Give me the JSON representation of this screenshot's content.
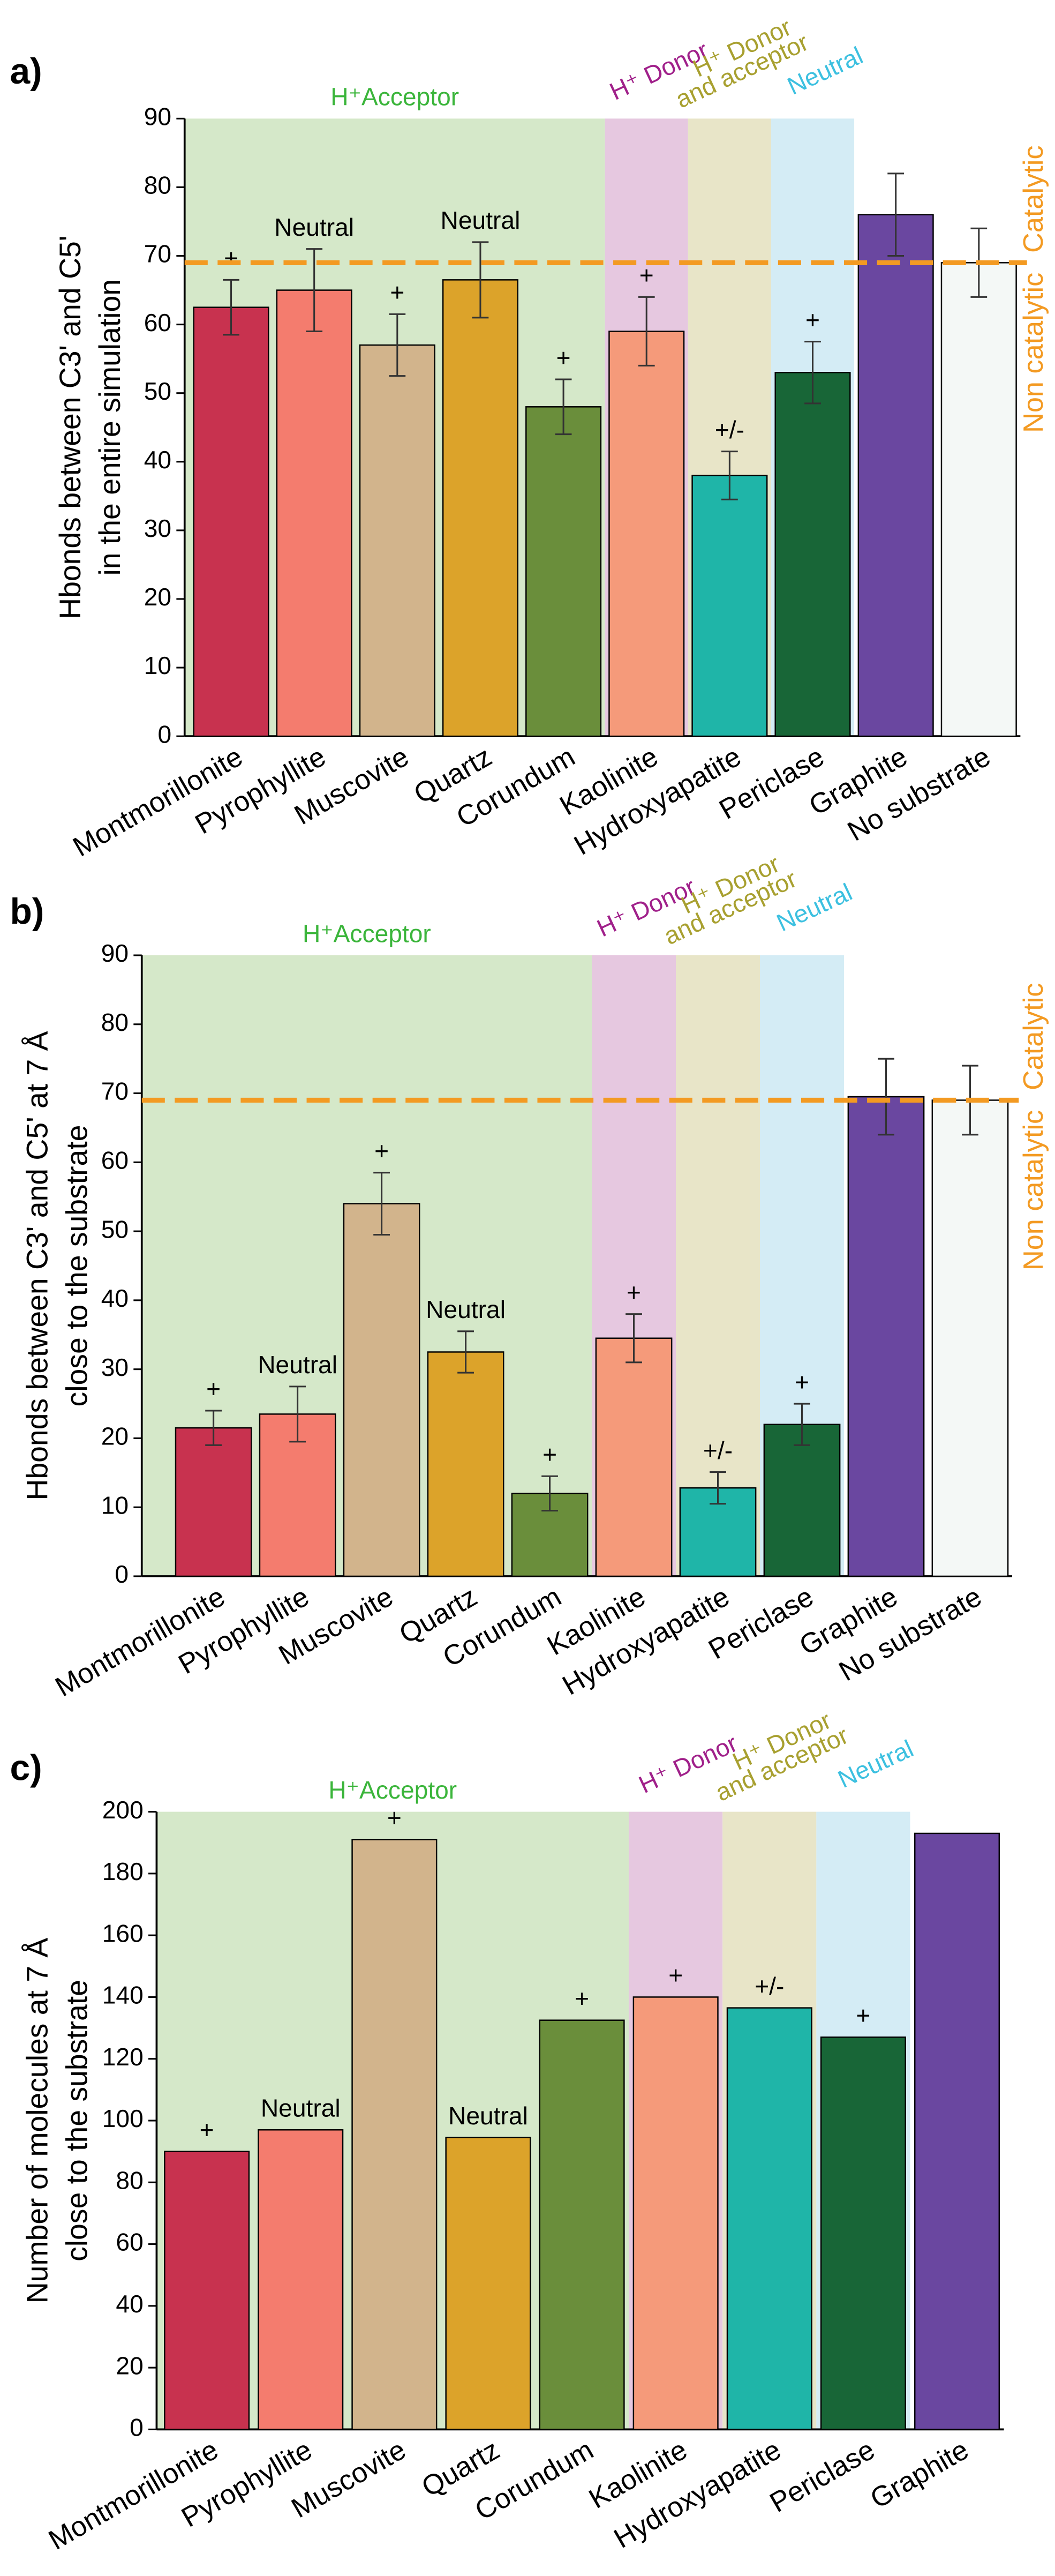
{
  "chart_data": [
    {
      "type": "bar",
      "panel_label": "a)",
      "ylabel": [
        "Hbonds between C3' and C5'",
        "in the entire simulation"
      ],
      "categories": [
        "Montmorillonite",
        "Pyrophyllite",
        "Muscovite",
        "Quartz",
        "Corundum",
        "Kaolinite",
        "Hydroxyapatite",
        "Periclase",
        "Graphite",
        "No substrate"
      ],
      "values": [
        62.5,
        65,
        57,
        66.5,
        48,
        59,
        38,
        53,
        76,
        69
      ],
      "errors": [
        4,
        6,
        4.5,
        5.5,
        4,
        5,
        3.5,
        4.5,
        6,
        5
      ],
      "colors": [
        "#c8324f",
        "#f47c6e",
        "#d2b48c",
        "#dca32a",
        "#6a8e3b",
        "#f59a7a",
        "#1fb5a8",
        "#186637",
        "#6a47a0",
        "#f4f8f6"
      ],
      "bar_labels": [
        "+",
        "Neutral",
        "+",
        "Neutral",
        "+",
        "+",
        "+/-",
        "+",
        null,
        null
      ],
      "ylim": [
        0,
        90
      ],
      "yticks": [
        0,
        10,
        20,
        30,
        40,
        50,
        60,
        70,
        80,
        90
      ],
      "regions": [
        {
          "label": [
            "H⁺Acceptor"
          ],
          "categories": [
            "Montmorillonite",
            "Corundum"
          ],
          "color": "#d5e8c9",
          "text_color": "#3bb53b"
        },
        {
          "label": [
            "H⁺ Donor"
          ],
          "categories": [
            "Kaolinite",
            "Kaolinite"
          ],
          "color": "#e6c8e0",
          "text_color": "#a0208a"
        },
        {
          "label": [
            "H⁺ Donor",
            "and acceptor"
          ],
          "categories": [
            "Hydroxyapatite",
            "Hydroxyapatite"
          ],
          "color": "#e8e5c8",
          "text_color": "#a8a030"
        },
        {
          "label": [
            "Neutral"
          ],
          "categories": [
            "Periclase",
            "Periclase"
          ],
          "color": "#d4ecf5",
          "text_color": "#3cc0e0"
        }
      ],
      "threshold": {
        "value": 69,
        "labels": [
          "Catalytic",
          "Non catalytic"
        ],
        "color": "#f39a22"
      }
    },
    {
      "type": "bar",
      "panel_label": "b)",
      "ylabel": [
        "Hbonds between C3' and C5' at 7 Å",
        "close to the substrate"
      ],
      "categories": [
        "Montmorillonite",
        "Pyrophyllite",
        "Muscovite",
        "Quartz",
        "Corundum",
        "Kaolinite",
        "Hydroxyapatite",
        "Periclase",
        "Graphite",
        "No substrate"
      ],
      "values": [
        21.5,
        23.5,
        54,
        32.5,
        12,
        34.5,
        12.8,
        22,
        69.5,
        69
      ],
      "errors": [
        2.5,
        4,
        4.5,
        3,
        2.5,
        3.5,
        2.3,
        3,
        5.5,
        5
      ],
      "colors": [
        "#c8324f",
        "#f47c6e",
        "#d2b48c",
        "#dca32a",
        "#6a8e3b",
        "#f59a7a",
        "#1fb5a8",
        "#186637",
        "#6a47a0",
        "#f4f8f6"
      ],
      "bar_labels": [
        "+",
        "Neutral",
        "+",
        "Neutral",
        "+",
        "+",
        "+/-",
        "+",
        null,
        null
      ],
      "ylim": [
        0,
        90
      ],
      "yticks": [
        0,
        10,
        20,
        30,
        40,
        50,
        60,
        70,
        80,
        90
      ],
      "regions": [
        {
          "label": [
            "H⁺Acceptor"
          ],
          "categories": [
            "Montmorillonite",
            "Corundum"
          ],
          "color": "#d5e8c9",
          "text_color": "#3bb53b"
        },
        {
          "label": [
            "H⁺ Donor"
          ],
          "categories": [
            "Kaolinite",
            "Kaolinite"
          ],
          "color": "#e6c8e0",
          "text_color": "#a0208a"
        },
        {
          "label": [
            "H⁺ Donor",
            "and acceptor"
          ],
          "categories": [
            "Hydroxyapatite",
            "Hydroxyapatite"
          ],
          "color": "#e8e5c8",
          "text_color": "#a8a030"
        },
        {
          "label": [
            "Neutral"
          ],
          "categories": [
            "Periclase",
            "Periclase"
          ],
          "color": "#d4ecf5",
          "text_color": "#3cc0e0"
        }
      ],
      "threshold": {
        "value": 69,
        "labels": [
          "Catalytic",
          "Non catalytic"
        ],
        "color": "#f39a22"
      }
    },
    {
      "type": "bar",
      "panel_label": "c)",
      "ylabel": [
        "Number of molecules at 7 Å",
        "close to the substrate"
      ],
      "categories": [
        "Montmorillonite",
        "Pyrophyllite",
        "Muscovite",
        "Quartz",
        "Corundum",
        "Kaolinite",
        "Hydroxyapatite",
        "Periclase",
        "Graphite"
      ],
      "values": [
        90,
        97,
        191,
        94.5,
        132.5,
        140,
        136.5,
        127,
        193
      ],
      "colors": [
        "#c8324f",
        "#f47c6e",
        "#d2b48c",
        "#dca32a",
        "#6a8e3b",
        "#f59a7a",
        "#1fb5a8",
        "#186637",
        "#6a47a0"
      ],
      "bar_labels": [
        "+",
        "Neutral",
        "+",
        "Neutral",
        "+",
        "+",
        "+/-",
        "+",
        null
      ],
      "ylim": [
        0,
        200
      ],
      "yticks": [
        0,
        20,
        40,
        60,
        80,
        100,
        120,
        140,
        160,
        180,
        200
      ],
      "regions": [
        {
          "label": [
            "H⁺Acceptor"
          ],
          "categories": [
            "Montmorillonite",
            "Corundum"
          ],
          "color": "#d5e8c9",
          "text_color": "#3bb53b"
        },
        {
          "label": [
            "H⁺ Donor"
          ],
          "categories": [
            "Kaolinite",
            "Kaolinite"
          ],
          "color": "#e6c8e0",
          "text_color": "#a0208a"
        },
        {
          "label": [
            "H⁺ Donor",
            "and acceptor"
          ],
          "categories": [
            "Hydroxyapatite",
            "Hydroxyapatite"
          ],
          "color": "#e8e5c8",
          "text_color": "#a8a030"
        },
        {
          "label": [
            "Neutral"
          ],
          "categories": [
            "Periclase",
            "Periclase"
          ],
          "color": "#d4ecf5",
          "text_color": "#3cc0e0"
        }
      ]
    }
  ]
}
